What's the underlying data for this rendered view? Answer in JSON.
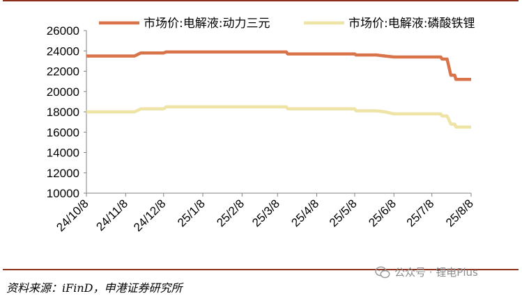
{
  "chart_data": {
    "type": "line",
    "ylim": [
      10000,
      26000
    ],
    "y_ticks": [
      "26000",
      "24000",
      "22000",
      "20000",
      "18000",
      "16000",
      "14000",
      "12000",
      "10000"
    ],
    "x_ticks": [
      "24/10/8",
      "24/11/8",
      "24/12/8",
      "25/1/8",
      "25/2/8",
      "25/3/8",
      "25/4/8",
      "25/5/8",
      "25/6/8",
      "25/7/8",
      "25/8/8"
    ],
    "xlim": [
      "2024-10-08",
      "2025-08-08"
    ],
    "grid": false,
    "legend_position": "top",
    "series": [
      {
        "name": "市场价:电解液:动力三元",
        "color": "#d9744a",
        "points": [
          [
            "2024-10-08",
            23500
          ],
          [
            "2024-11-08",
            23500
          ],
          [
            "2024-11-15",
            23500
          ],
          [
            "2024-11-20",
            23800
          ],
          [
            "2024-12-08",
            23800
          ],
          [
            "2024-12-10",
            23900
          ],
          [
            "2025-03-08",
            23900
          ],
          [
            "2025-03-15",
            23900
          ],
          [
            "2025-03-16",
            23700
          ],
          [
            "2025-05-08",
            23700
          ],
          [
            "2025-05-09",
            23600
          ],
          [
            "2025-05-25",
            23600
          ],
          [
            "2025-06-01",
            23500
          ],
          [
            "2025-06-08",
            23400
          ],
          [
            "2025-07-15",
            23400
          ],
          [
            "2025-07-16",
            23200
          ],
          [
            "2025-07-20",
            23200
          ],
          [
            "2025-07-23",
            21600
          ],
          [
            "2025-07-26",
            21600
          ],
          [
            "2025-07-27",
            21200
          ],
          [
            "2025-08-08",
            21200
          ]
        ]
      },
      {
        "name": "市场价:电解液:磷酸铁锂",
        "color": "#ede4a6",
        "points": [
          [
            "2024-10-08",
            18000
          ],
          [
            "2024-11-08",
            18000
          ],
          [
            "2024-11-15",
            18000
          ],
          [
            "2024-11-20",
            18300
          ],
          [
            "2024-12-08",
            18300
          ],
          [
            "2024-12-10",
            18500
          ],
          [
            "2025-03-08",
            18500
          ],
          [
            "2025-03-15",
            18500
          ],
          [
            "2025-03-16",
            18300
          ],
          [
            "2025-05-08",
            18300
          ],
          [
            "2025-05-09",
            18100
          ],
          [
            "2025-05-25",
            18100
          ],
          [
            "2025-06-01",
            18000
          ],
          [
            "2025-06-08",
            17800
          ],
          [
            "2025-07-15",
            17800
          ],
          [
            "2025-07-16",
            17600
          ],
          [
            "2025-07-20",
            17600
          ],
          [
            "2025-07-23",
            16800
          ],
          [
            "2025-07-26",
            16800
          ],
          [
            "2025-07-27",
            16500
          ],
          [
            "2025-08-08",
            16500
          ]
        ]
      }
    ]
  },
  "source": "资料来源：iFinD，申港证券研究所",
  "watermark": {
    "icon": "wechat-icon",
    "text": "公众号 · 锂电Plus"
  },
  "colors": {
    "rule": "#8b2e1a",
    "axis": "#808080"
  }
}
